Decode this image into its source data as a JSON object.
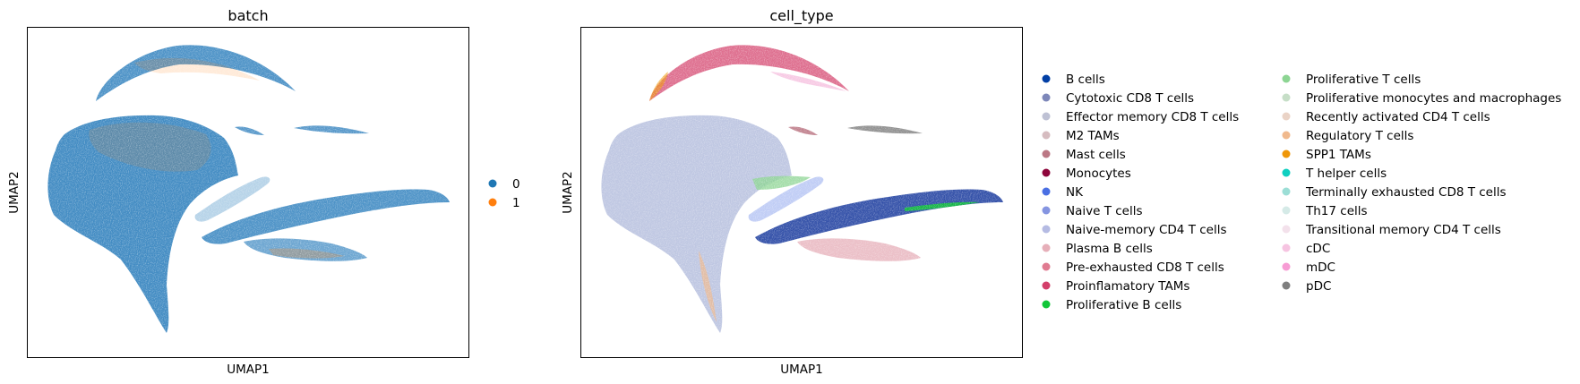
{
  "chart_data": [
    {
      "type": "scatter",
      "title": "batch",
      "xlabel": "UMAP1",
      "ylabel": "UMAP2",
      "grid": false,
      "legend_position": "right",
      "legend": [
        {
          "label": "0",
          "color": "#1f77b4"
        },
        {
          "label": "1",
          "color": "#ff7f0e"
        }
      ]
    },
    {
      "type": "scatter",
      "title": "cell_type",
      "xlabel": "UMAP1",
      "ylabel": "UMAP2",
      "grid": false,
      "legend_position": "right",
      "legend": [
        {
          "label": "B cells",
          "color": "#023fa5"
        },
        {
          "label": "Cytotoxic CD8 T cells",
          "color": "#7d87b9"
        },
        {
          "label": "Effector memory CD8 T cells",
          "color": "#bec1d4"
        },
        {
          "label": "M2 TAMs",
          "color": "#d6bcc0"
        },
        {
          "label": "Mast cells",
          "color": "#bb7784"
        },
        {
          "label": "Monocytes",
          "color": "#8e063b"
        },
        {
          "label": "NK",
          "color": "#4a6fe3"
        },
        {
          "label": "Naive T cells",
          "color": "#8595e1"
        },
        {
          "label": "Naive-memory CD4 T cells",
          "color": "#b5bbe3"
        },
        {
          "label": "Plasma B cells",
          "color": "#e6afb9"
        },
        {
          "label": "Pre-exhausted CD8 T cells",
          "color": "#e07b91"
        },
        {
          "label": "Proinflamatory TAMs",
          "color": "#d33f6a"
        },
        {
          "label": "Proliferative B cells",
          "color": "#11c638"
        },
        {
          "label": "Proliferative T cells",
          "color": "#8dd593"
        },
        {
          "label": "Proliferative monocytes and macrophages",
          "color": "#c6dec7"
        },
        {
          "label": "Recently activated CD4 T cells",
          "color": "#ead3c6"
        },
        {
          "label": "Regulatory T cells",
          "color": "#f0b98d"
        },
        {
          "label": "SPP1 TAMs",
          "color": "#ef9708"
        },
        {
          "label": "T helper cells",
          "color": "#0fcfc0"
        },
        {
          "label": "Terminally exhausted CD8 T cells",
          "color": "#9cded6"
        },
        {
          "label": "Th17 cells",
          "color": "#d5eae7"
        },
        {
          "label": "Transitional memory CD4 T cells",
          "color": "#f3e1eb"
        },
        {
          "label": "cDC",
          "color": "#f6c4e1"
        },
        {
          "label": "mDC",
          "color": "#f79cd4"
        },
        {
          "label": "pDC",
          "color": "#7f7f7f"
        }
      ]
    }
  ]
}
